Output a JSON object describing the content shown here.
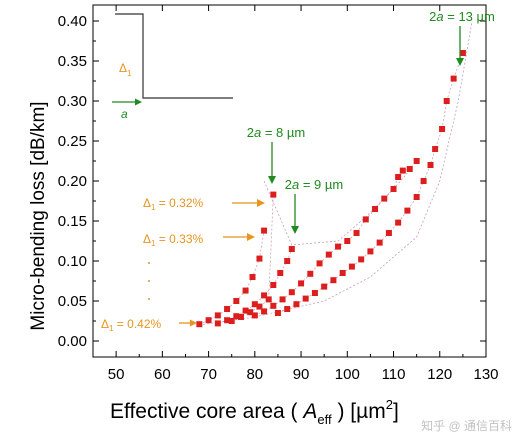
{
  "chart_data": {
    "type": "scatter",
    "xlabel": {
      "prefix": "Effective core area ( ",
      "var": "A",
      "sub": "eff",
      "suffix": " ) [µm",
      "sup": "2",
      "close": "]"
    },
    "ylabel": "Micro-bending loss [dB/km]",
    "xlim": [
      45,
      130
    ],
    "ylim": [
      -0.02,
      0.42
    ],
    "x_ticks": [
      50,
      60,
      70,
      80,
      90,
      100,
      110,
      120,
      130
    ],
    "y_ticks": [
      "0.00",
      "0.05",
      "0.10",
      "0.15",
      "0.20",
      "0.25",
      "0.30",
      "0.35",
      "0.40"
    ],
    "grid": false,
    "marker_color": "#dd1e1e",
    "series": [
      {
        "values": [
          [
            68,
            0.021
          ],
          [
            70,
            0.026
          ],
          [
            72,
            0.032
          ],
          [
            74,
            0.04
          ],
          [
            76,
            0.05
          ],
          [
            78,
            0.063
          ],
          [
            79.5,
            0.08
          ],
          [
            81,
            0.103
          ],
          [
            82,
            0.138
          ]
        ]
      },
      {
        "values": [
          [
            72,
            0.022
          ],
          [
            74,
            0.026
          ],
          [
            76,
            0.031
          ],
          [
            78,
            0.038
          ],
          [
            80,
            0.046
          ],
          [
            82,
            0.057
          ],
          [
            84,
            0.07
          ],
          [
            85.5,
            0.085
          ],
          [
            87,
            0.1
          ],
          [
            88,
            0.115
          ]
        ]
      },
      {
        "values": [
          [
            75,
            0.025
          ],
          [
            77,
            0.03
          ],
          [
            79,
            0.036
          ],
          [
            81,
            0.043
          ],
          [
            83,
            0.052
          ],
          [
            84,
            0.183
          ]
        ]
      },
      {
        "values": [
          [
            80,
            0.032
          ],
          [
            82,
            0.037
          ],
          [
            84,
            0.044
          ],
          [
            86,
            0.052
          ],
          [
            88,
            0.061
          ],
          [
            90,
            0.072
          ],
          [
            92,
            0.084
          ],
          [
            94,
            0.097
          ],
          [
            96,
            0.108
          ],
          [
            98,
            0.118
          ],
          [
            100,
            0.125
          ],
          [
            102,
            0.135
          ],
          [
            104,
            0.152
          ],
          [
            106,
            0.165
          ],
          [
            108,
            0.178
          ],
          [
            110,
            0.19
          ],
          [
            111,
            0.205
          ],
          [
            112,
            0.213
          ],
          [
            113.5,
            0.215
          ],
          [
            115,
            0.225
          ]
        ]
      },
      {
        "values": [
          [
            85,
            0.035
          ],
          [
            87,
            0.04
          ],
          [
            89,
            0.046
          ],
          [
            91,
            0.053
          ],
          [
            93,
            0.06
          ],
          [
            95,
            0.068
          ],
          [
            97,
            0.076
          ],
          [
            99,
            0.085
          ],
          [
            101,
            0.093
          ],
          [
            103,
            0.102
          ],
          [
            105,
            0.112
          ],
          [
            107,
            0.123
          ],
          [
            109,
            0.135
          ],
          [
            111,
            0.148
          ],
          [
            113,
            0.163
          ],
          [
            115,
            0.18
          ],
          [
            116.5,
            0.2
          ],
          [
            118,
            0.22
          ],
          [
            119,
            0.24
          ],
          [
            120.5,
            0.265
          ],
          [
            121.5,
            0.3
          ],
          [
            123,
            0.328
          ],
          [
            125,
            0.36
          ]
        ]
      }
    ],
    "annotations": {
      "twoa13": "2a = 13 µm",
      "twoa8": "2a = 8 µm",
      "twoa9": "2a = 9 µm",
      "delta032": "Δ₁ = 0.32%",
      "delta033": "Δ₁ = 0.33%",
      "delta042": "Δ₁ = 0.42%"
    },
    "inset": {
      "delta_label": "Δ₁",
      "a_label": "a"
    },
    "colors": {
      "green": "#1f8a1f",
      "orange": "#e8941e",
      "red": "#dd1e1e"
    }
  },
  "watermark": "知乎 @ 通信百科"
}
